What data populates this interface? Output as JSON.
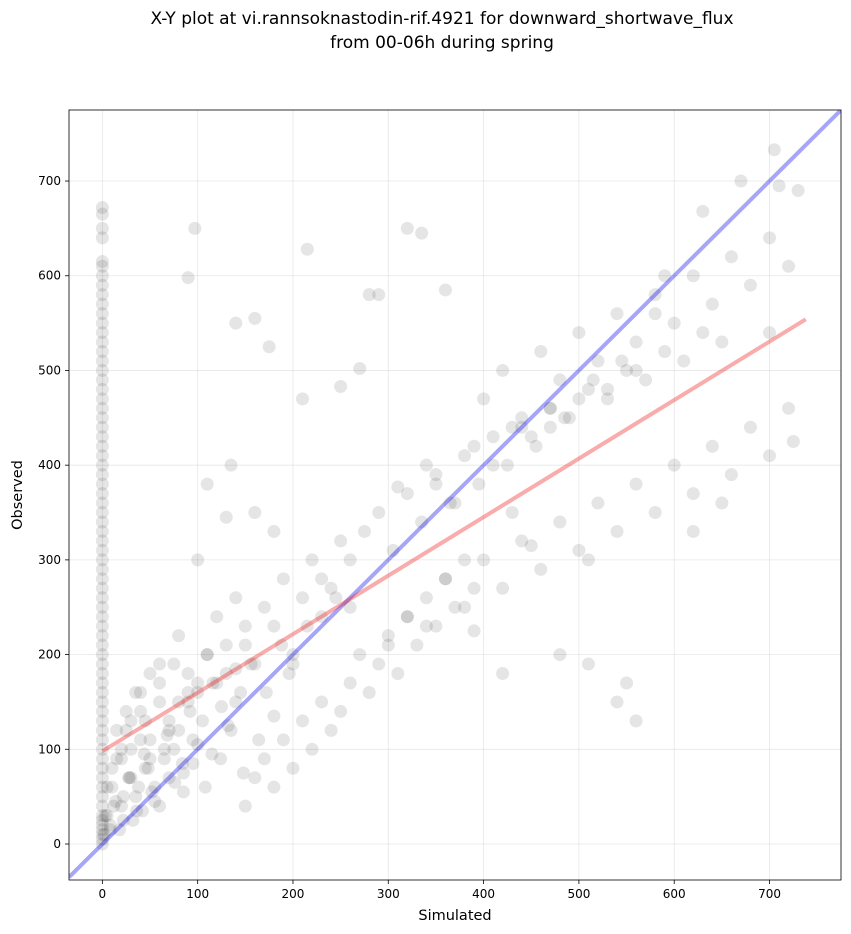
{
  "chart_data": {
    "type": "scatter",
    "title": "X-Y plot at vi.rannsoknastodin-rif.4921 for downward_shortwave_flux",
    "subtitle": "from 00-06h during spring",
    "xlabel": "Simulated",
    "ylabel": "Observed",
    "xlim": [
      -35,
      775
    ],
    "ylim": [
      -38,
      775
    ],
    "xticks": [
      0,
      100,
      200,
      300,
      400,
      500,
      600,
      700
    ],
    "yticks": [
      0,
      100,
      200,
      300,
      400,
      500,
      600,
      700
    ],
    "grid": true,
    "colors": {
      "points": "#000000",
      "identity_line": "#0000ee",
      "fit_line": "#ee1111"
    },
    "lines": {
      "identity": {
        "x": [
          -35,
          775
        ],
        "y": [
          -35,
          775
        ]
      },
      "fit": {
        "x": [
          0,
          738
        ],
        "y": [
          98,
          554
        ]
      }
    },
    "series": [
      {
        "x": [
          0,
          0,
          0,
          0,
          0,
          0,
          0,
          0,
          0,
          0,
          0,
          0,
          0,
          0,
          0,
          0,
          0,
          0,
          0,
          0,
          0,
          0,
          0,
          0,
          0,
          0,
          0,
          0,
          0,
          0,
          0,
          0,
          0,
          0,
          0,
          0,
          0,
          0,
          0,
          0,
          0,
          0,
          0,
          0,
          0,
          0,
          0,
          0,
          0,
          0,
          0,
          0,
          0,
          0,
          0,
          0,
          0,
          0,
          0,
          0,
          0,
          0,
          0,
          0,
          0,
          0,
          0,
          0,
          0,
          0,
          2,
          3,
          5,
          8,
          10,
          12,
          15,
          18,
          20,
          22,
          25,
          28,
          30,
          32,
          35,
          38,
          40,
          42,
          45,
          48,
          50,
          55,
          60,
          65,
          70,
          75,
          80,
          85,
          90,
          95,
          5,
          10,
          15,
          20,
          25,
          30,
          35,
          40,
          45,
          50,
          55,
          60,
          65,
          70,
          75,
          80,
          85,
          90,
          95,
          100,
          105,
          110,
          115,
          120,
          125,
          130,
          135,
          140,
          145,
          150,
          8,
          14,
          22,
          28,
          36,
          44,
          52,
          60,
          68,
          76,
          84,
          92,
          100,
          108,
          116,
          124,
          132,
          140,
          148,
          156,
          164,
          172,
          180,
          188,
          196,
          20,
          30,
          40,
          50,
          60,
          70,
          80,
          90,
          100,
          110,
          120,
          130,
          140,
          150,
          160,
          170,
          180,
          190,
          200,
          210,
          220,
          230,
          240,
          250,
          260,
          150,
          160,
          170,
          180,
          190,
          200,
          210,
          220,
          230,
          240,
          250,
          260,
          270,
          280,
          290,
          300,
          310,
          320,
          330,
          340,
          350,
          360,
          370,
          380,
          390,
          200,
          215,
          230,
          245,
          260,
          275,
          290,
          305,
          320,
          335,
          350,
          365,
          380,
          395,
          410,
          425,
          440,
          455,
          470,
          485,
          500,
          515,
          530,
          545,
          560,
          300,
          320,
          340,
          360,
          380,
          400,
          420,
          440,
          460,
          480,
          500,
          520,
          540,
          560,
          580,
          600,
          620,
          640,
          660,
          680,
          700,
          720,
          350,
          370,
          390,
          410,
          430,
          450,
          470,
          490,
          510,
          530,
          550,
          570,
          590,
          610,
          630,
          650,
          400,
          420,
          440,
          460,
          480,
          500,
          520,
          540,
          560,
          580,
          600,
          620,
          640,
          660,
          680,
          700,
          720,
          90,
          97,
          135,
          140,
          160,
          175,
          215,
          280,
          320,
          335,
          360,
          430,
          470,
          510,
          540,
          560,
          580,
          620,
          650,
          700,
          705,
          710,
          725,
          730,
          100,
          110,
          130,
          160,
          180,
          210,
          250,
          270,
          290,
          310,
          340,
          390,
          420,
          450,
          480,
          510,
          550,
          590,
          630,
          670
        ],
        "y": [
          0,
          5,
          10,
          15,
          20,
          25,
          30,
          40,
          50,
          60,
          70,
          80,
          90,
          100,
          110,
          120,
          130,
          140,
          150,
          160,
          170,
          180,
          190,
          200,
          210,
          220,
          230,
          240,
          250,
          260,
          270,
          280,
          290,
          300,
          310,
          320,
          330,
          340,
          350,
          360,
          370,
          380,
          390,
          400,
          410,
          420,
          430,
          440,
          450,
          460,
          470,
          480,
          490,
          500,
          510,
          520,
          530,
          540,
          550,
          560,
          570,
          580,
          590,
          600,
          610,
          615,
          640,
          650,
          665,
          672,
          10,
          30,
          60,
          20,
          80,
          40,
          120,
          15,
          90,
          50,
          140,
          70,
          100,
          25,
          160,
          60,
          110,
          35,
          130,
          80,
          180,
          45,
          150,
          100,
          70,
          190,
          120,
          55,
          160,
          85,
          30,
          60,
          90,
          40,
          120,
          70,
          50,
          140,
          80,
          110,
          60,
          170,
          90,
          130,
          100,
          150,
          75,
          180,
          110,
          160,
          130,
          200,
          95,
          170,
          145,
          210,
          120,
          185,
          160,
          230,
          15,
          45,
          25,
          70,
          35,
          95,
          55,
          40,
          115,
          65,
          85,
          140,
          105,
          60,
          170,
          90,
          125,
          150,
          75,
          190,
          110,
          160,
          135,
          210,
          180,
          100,
          130,
          160,
          90,
          190,
          120,
          220,
          150,
          170,
          200,
          240,
          180,
          260,
          210,
          190,
          250,
          230,
          280,
          200,
          260,
          300,
          240,
          270,
          320,
          250,
          40,
          70,
          90,
          60,
          110,
          80,
          130,
          100,
          150,
          120,
          140,
          170,
          200,
          160,
          190,
          220,
          180,
          240,
          210,
          260,
          230,
          280,
          250,
          300,
          270,
          190,
          230,
          280,
          260,
          300,
          330,
          350,
          310,
          370,
          340,
          390,
          360,
          410,
          380,
          430,
          400,
          440,
          420,
          460,
          450,
          470,
          490,
          480,
          510,
          500,
          210,
          240,
          230,
          280,
          250,
          300,
          270,
          320,
          290,
          340,
          310,
          360,
          330,
          380,
          350,
          400,
          370,
          420,
          390,
          440,
          410,
          460,
          380,
          360,
          420,
          400,
          440,
          430,
          460,
          450,
          480,
          470,
          500,
          490,
          520,
          510,
          540,
          530,
          470,
          500,
          450,
          520,
          490,
          540,
          510,
          560,
          530,
          580,
          550,
          600,
          570,
          620,
          590,
          640,
          610,
          598,
          650,
          400,
          550,
          555,
          525,
          628,
          580,
          650,
          645,
          585,
          350,
          440,
          300,
          150,
          130,
          560,
          330,
          360,
          540,
          733,
          695,
          425,
          690,
          300,
          380,
          345,
          350,
          330,
          470,
          483,
          502,
          580,
          377,
          400,
          225,
          180,
          315,
          200,
          190,
          170,
          600,
          668,
          700
        ]
      }
    ]
  }
}
